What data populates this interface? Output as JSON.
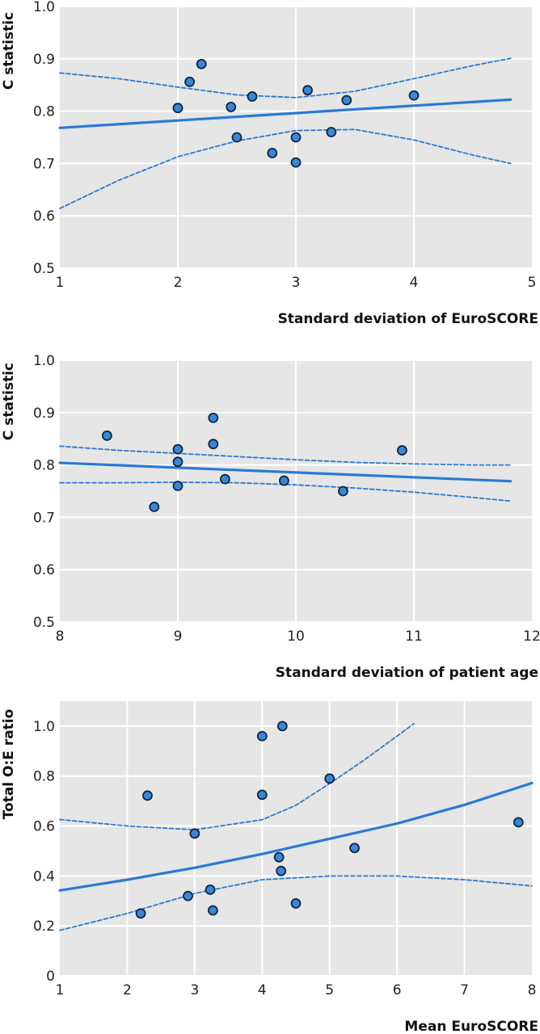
{
  "colors": {
    "panel_background": "#e6e6e6",
    "grid": "#ffffff",
    "line": "#2a7ad5",
    "point_fill": "#3a86d9",
    "point_stroke": "#0d2740"
  },
  "chart_data": [
    {
      "type": "scatter",
      "title": "",
      "xlabel": "Standard deviation of EuroSCORE",
      "ylabel": "C statistic",
      "xlim": [
        1,
        5
      ],
      "ylim": [
        0.5,
        1.0
      ],
      "xticks": [
        1,
        2,
        3,
        4,
        5
      ],
      "xtick_labels": [
        "1",
        "2",
        "3",
        "4",
        "5"
      ],
      "yticks": [
        0.5,
        0.6,
        0.7,
        0.8,
        0.9,
        1.0
      ],
      "ytick_labels": [
        "0.5",
        "0.6",
        "0.7",
        "0.8",
        "0.9",
        "1.0"
      ],
      "grid": true,
      "points": [
        {
          "x": 2.0,
          "y": 0.806
        },
        {
          "x": 2.1,
          "y": 0.856
        },
        {
          "x": 2.2,
          "y": 0.89
        },
        {
          "x": 2.45,
          "y": 0.808
        },
        {
          "x": 2.5,
          "y": 0.75
        },
        {
          "x": 2.63,
          "y": 0.828
        },
        {
          "x": 2.8,
          "y": 0.72
        },
        {
          "x": 3.0,
          "y": 0.75
        },
        {
          "x": 3.0,
          "y": 0.702
        },
        {
          "x": 3.1,
          "y": 0.84
        },
        {
          "x": 3.3,
          "y": 0.76
        },
        {
          "x": 3.43,
          "y": 0.821
        },
        {
          "x": 4.0,
          "y": 0.83
        }
      ],
      "fit": {
        "x": [
          1.0,
          4.82
        ],
        "y": [
          0.768,
          0.822
        ]
      },
      "ci_upper": {
        "x": [
          1.0,
          1.5,
          2.0,
          2.5,
          3.0,
          3.5,
          4.0,
          4.5,
          4.82
        ],
        "y": [
          0.873,
          0.862,
          0.846,
          0.831,
          0.826,
          0.838,
          0.862,
          0.887,
          0.901
        ]
      },
      "ci_lower": {
        "x": [
          1.0,
          1.5,
          2.0,
          2.5,
          3.0,
          3.5,
          4.0,
          4.5,
          4.82
        ],
        "y": [
          0.614,
          0.668,
          0.713,
          0.743,
          0.763,
          0.765,
          0.745,
          0.716,
          0.7
        ]
      }
    },
    {
      "type": "scatter",
      "title": "",
      "xlabel": "Standard deviation of patient age",
      "ylabel": "C statistic",
      "xlim": [
        8,
        12
      ],
      "ylim": [
        0.5,
        1.0
      ],
      "xticks": [
        8,
        9,
        10,
        11,
        12
      ],
      "xtick_labels": [
        "8",
        "9",
        "10",
        "11",
        "12"
      ],
      "yticks": [
        0.5,
        0.6,
        0.7,
        0.8,
        0.9,
        1.0
      ],
      "ytick_labels": [
        "0.5",
        "0.6",
        "0.7",
        "0.8",
        "0.9",
        "1.0"
      ],
      "grid": true,
      "points": [
        {
          "x": 8.4,
          "y": 0.856
        },
        {
          "x": 8.8,
          "y": 0.72
        },
        {
          "x": 9.0,
          "y": 0.83
        },
        {
          "x": 9.0,
          "y": 0.806
        },
        {
          "x": 9.0,
          "y": 0.76
        },
        {
          "x": 9.3,
          "y": 0.89
        },
        {
          "x": 9.3,
          "y": 0.84
        },
        {
          "x": 9.4,
          "y": 0.773
        },
        {
          "x": 9.9,
          "y": 0.77
        },
        {
          "x": 10.4,
          "y": 0.75
        },
        {
          "x": 10.9,
          "y": 0.828
        }
      ],
      "fit": {
        "x": [
          8.0,
          11.82
        ],
        "y": [
          0.804,
          0.769
        ]
      },
      "ci_upper": {
        "x": [
          8.0,
          8.5,
          9.0,
          9.5,
          10.0,
          10.5,
          11.0,
          11.5,
          11.82
        ],
        "y": [
          0.836,
          0.828,
          0.822,
          0.816,
          0.81,
          0.805,
          0.802,
          0.8,
          0.8
        ]
      },
      "ci_lower": {
        "x": [
          8.0,
          8.5,
          9.0,
          9.5,
          10.0,
          10.5,
          11.0,
          11.5,
          11.82
        ],
        "y": [
          0.766,
          0.766,
          0.767,
          0.766,
          0.762,
          0.756,
          0.748,
          0.738,
          0.731
        ]
      }
    },
    {
      "type": "scatter",
      "title": "",
      "xlabel": "Mean EuroSCORE",
      "ylabel": "Total O:E ratio",
      "xlim": [
        1,
        8
      ],
      "ylim": [
        0,
        1.1
      ],
      "xticks": [
        1,
        2,
        3,
        4,
        5,
        6,
        7,
        8
      ],
      "xtick_labels": [
        "1",
        "2",
        "3",
        "4",
        "5",
        "6",
        "7",
        "8"
      ],
      "yticks": [
        0,
        0.2,
        0.4,
        0.6,
        0.8,
        1.0
      ],
      "ytick_labels": [
        "0",
        "0.2",
        "0.4",
        "0.6",
        "0.8",
        "1.0"
      ],
      "grid": true,
      "points": [
        {
          "x": 2.2,
          "y": 0.25
        },
        {
          "x": 2.3,
          "y": 0.722
        },
        {
          "x": 2.9,
          "y": 0.32
        },
        {
          "x": 3.0,
          "y": 0.57
        },
        {
          "x": 3.23,
          "y": 0.345
        },
        {
          "x": 3.27,
          "y": 0.262
        },
        {
          "x": 4.0,
          "y": 0.96
        },
        {
          "x": 4.0,
          "y": 0.725
        },
        {
          "x": 4.25,
          "y": 0.475
        },
        {
          "x": 4.28,
          "y": 0.42
        },
        {
          "x": 4.3,
          "y": 1.0
        },
        {
          "x": 4.5,
          "y": 0.29
        },
        {
          "x": 5.0,
          "y": 0.79
        },
        {
          "x": 5.37,
          "y": 0.512
        },
        {
          "x": 7.8,
          "y": 0.615
        }
      ],
      "fit": {
        "x": [
          1.0,
          2.0,
          3.0,
          4.0,
          5.0,
          6.0,
          7.0,
          8.0
        ],
        "y": [
          0.342,
          0.385,
          0.433,
          0.488,
          0.549,
          0.61,
          0.685,
          0.772
        ]
      },
      "ci_upper": {
        "x": [
          1.0,
          2.0,
          3.0,
          4.0,
          4.5,
          5.0,
          5.5,
          6.0,
          6.25
        ],
        "y": [
          0.626,
          0.6,
          0.585,
          0.625,
          0.683,
          0.77,
          0.862,
          0.96,
          1.01
        ]
      },
      "ci_lower": {
        "x": [
          1.0,
          2.0,
          3.0,
          4.0,
          5.0,
          6.0,
          7.0,
          8.0
        ],
        "y": [
          0.182,
          0.25,
          0.33,
          0.385,
          0.4,
          0.4,
          0.385,
          0.36
        ]
      }
    }
  ]
}
